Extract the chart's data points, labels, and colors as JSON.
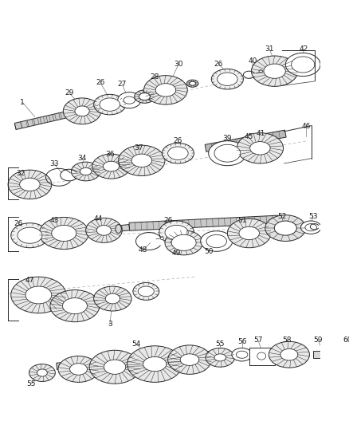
{
  "bg_color": "#ffffff",
  "line_color": "#2a2a2a",
  "label_color": "#1a1a1a",
  "label_fontsize": 6.5,
  "fig_width": 4.38,
  "fig_height": 5.33,
  "dpi": 100,
  "gear_fill": "#e8e8e8",
  "shaft_fill": "#d0d0d0",
  "ring_fill": "#f0f0f0"
}
